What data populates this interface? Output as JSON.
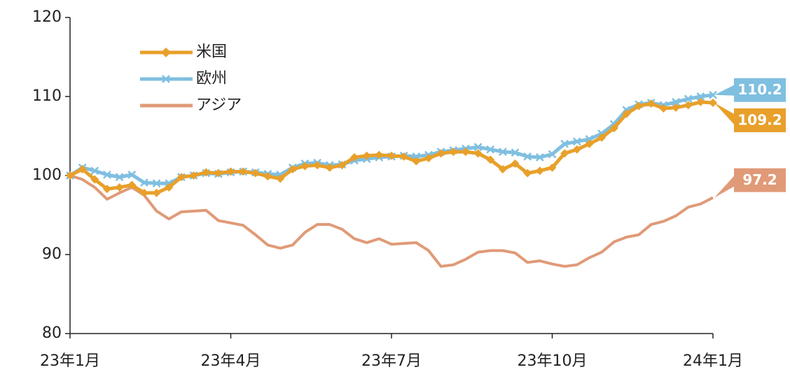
{
  "chart_data": {
    "type": "line",
    "categories": [
      "23年1月",
      null,
      null,
      null,
      null,
      null,
      null,
      null,
      null,
      null,
      null,
      null,
      null,
      "23年4月",
      null,
      null,
      null,
      null,
      null,
      null,
      null,
      null,
      null,
      null,
      null,
      null,
      "23年7月",
      null,
      null,
      null,
      null,
      null,
      null,
      null,
      null,
      null,
      null,
      null,
      null,
      "23年10月",
      null,
      null,
      null,
      null,
      null,
      null,
      null,
      null,
      null,
      null,
      null,
      null,
      "24年1月"
    ],
    "series": [
      {
        "name": "米国",
        "color": "#e8a02a",
        "marker": "diamond",
        "values": [
          100,
          100.8,
          99.5,
          98.3,
          98.5,
          98.8,
          97.8,
          97.8,
          98.5,
          99.8,
          100,
          100.4,
          100.3,
          100.5,
          100.5,
          100.3,
          99.9,
          99.6,
          100.8,
          101.2,
          101.3,
          101,
          101.3,
          102.3,
          102.5,
          102.6,
          102.5,
          102.4,
          101.8,
          102.2,
          102.8,
          103,
          103,
          102.8,
          102,
          100.8,
          101.5,
          100.3,
          100.6,
          101,
          102.8,
          103.3,
          104,
          104.8,
          106,
          107.8,
          108.8,
          109.1,
          108.5,
          108.6,
          108.9,
          109.3,
          109.2
        ]
      },
      {
        "name": "欧州",
        "color": "#7fbfe0",
        "marker": "x",
        "values": [
          100,
          101,
          100.6,
          100.1,
          99.8,
          100.1,
          99.1,
          99,
          99,
          99.8,
          100,
          100.3,
          100.2,
          100.4,
          100.5,
          100.4,
          100.2,
          100.1,
          101,
          101.5,
          101.6,
          101.3,
          101.4,
          101.9,
          102.1,
          102.3,
          102.4,
          102.5,
          102.4,
          102.6,
          103,
          103.2,
          103.4,
          103.6,
          103.3,
          103,
          102.9,
          102.4,
          102.3,
          102.7,
          104,
          104.3,
          104.6,
          105.3,
          106.5,
          108.3,
          109,
          109.2,
          108.9,
          109.3,
          109.7,
          110,
          110.2
        ]
      },
      {
        "name": "アジア",
        "color": "#e09a78",
        "marker": "none",
        "values": [
          100,
          99.5,
          98.5,
          97,
          97.8,
          98.5,
          97.5,
          95.5,
          94.5,
          95.4,
          95.5,
          95.6,
          94.3,
          94,
          93.7,
          92.5,
          91.2,
          90.8,
          91.2,
          92.8,
          93.8,
          93.8,
          93.2,
          92,
          91.5,
          92,
          91.3,
          91.4,
          91.5,
          90.5,
          88.5,
          88.7,
          89.4,
          90.3,
          90.5,
          90.5,
          90.2,
          89,
          89.2,
          88.8,
          88.5,
          88.7,
          89.6,
          90.3,
          91.6,
          92.2,
          92.5,
          93.8,
          94.2,
          94.9,
          96,
          96.4,
          97.2
        ]
      }
    ],
    "ylim": [
      80,
      120
    ],
    "yticks": [
      80,
      90,
      100,
      110,
      120
    ]
  }
}
